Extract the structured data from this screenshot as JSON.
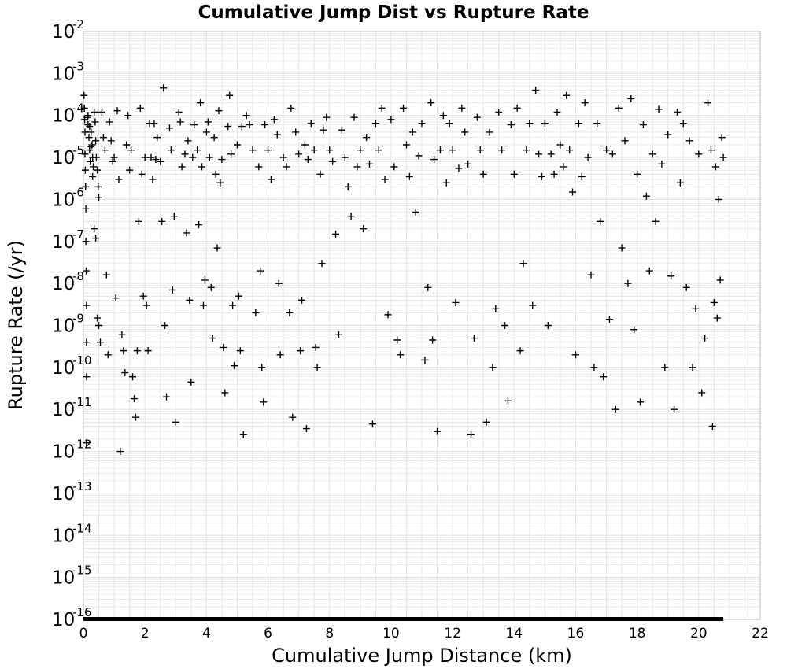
{
  "chart_data": {
    "type": "scatter",
    "title": "Cumulative Jump Dist vs Rupture Rate",
    "xlabel": "Cumulative Jump Distance (km)",
    "ylabel": "Rupture Rate (/yr)",
    "xlim": [
      0,
      22
    ],
    "ylim": [
      1e-16,
      0.01
    ],
    "y_scale": "log",
    "grid": true,
    "marker": "plus",
    "marker_color": "#000000",
    "grid_color": "#e4e4e4",
    "x_ticks": [
      "0",
      "2",
      "4",
      "6",
      "8",
      "10",
      "12",
      "14",
      "16",
      "18",
      "20",
      "22"
    ],
    "y_ticks": [
      {
        "base": "10",
        "exp": "-2"
      },
      {
        "base": "10",
        "exp": "-3"
      },
      {
        "base": "10",
        "exp": "-4"
      },
      {
        "base": "10",
        "exp": "-5"
      },
      {
        "base": "10",
        "exp": "-6"
      },
      {
        "base": "10",
        "exp": "-7"
      },
      {
        "base": "10",
        "exp": "-8"
      },
      {
        "base": "10",
        "exp": "-9"
      },
      {
        "base": "10",
        "exp": "-10"
      },
      {
        "base": "10",
        "exp": "-11"
      },
      {
        "base": "10",
        "exp": "-12"
      },
      {
        "base": "10",
        "exp": "-13"
      },
      {
        "base": "10",
        "exp": "-14"
      },
      {
        "base": "10",
        "exp": "-15"
      },
      {
        "base": "10",
        "exp": "-16"
      }
    ],
    "floor_band": {
      "x_range": [
        0,
        20.8
      ],
      "y": 1e-16
    },
    "points": [
      [
        0.02,
        0.0003
      ],
      [
        0.03,
        0.00015
      ],
      [
        0.04,
        8e-05
      ],
      [
        0.05,
        4e-05
      ],
      [
        0.05,
        1.2e-05
      ],
      [
        0.06,
        5e-06
      ],
      [
        0.07,
        2e-06
      ],
      [
        0.08,
        6e-07
      ],
      [
        0.08,
        1e-07
      ],
      [
        0.09,
        2e-08
      ],
      [
        0.1,
        3e-09
      ],
      [
        0.1,
        4e-10
      ],
      [
        0.1,
        6e-11
      ],
      [
        0.1,
        1.6e-12
      ],
      [
        0.12,
        9e-05
      ],
      [
        0.15,
        6e-05
      ],
      [
        0.18,
        3e-05
      ],
      [
        0.2,
        1.5e-05
      ],
      [
        0.22,
        8e-06
      ],
      [
        0.25,
        4e-05
      ],
      [
        0.28,
        2e-05
      ],
      [
        0.3,
        1e-05
      ],
      [
        0.32,
        6e-06
      ],
      [
        0.35,
        0.00012
      ],
      [
        0.38,
        7e-05
      ],
      [
        0.4,
        2.5e-05
      ],
      [
        0.42,
        1e-05
      ],
      [
        0.45,
        5e-06
      ],
      [
        0.48,
        2e-06
      ],
      [
        0.5,
        1.1e-06
      ],
      [
        0.15,
        0.0001
      ],
      [
        0.2,
        5.5e-05
      ],
      [
        0.25,
        1.8e-05
      ],
      [
        0.3,
        3.5e-06
      ],
      [
        0.35,
        2e-07
      ],
      [
        0.4,
        1.2e-07
      ],
      [
        0.45,
        1.5e-09
      ],
      [
        0.5,
        1e-09
      ],
      [
        0.55,
        4e-10
      ],
      [
        0.6,
        0.00012
      ],
      [
        0.65,
        3e-05
      ],
      [
        0.7,
        1.5e-05
      ],
      [
        0.75,
        1.6e-08
      ],
      [
        0.8,
        2e-10
      ],
      [
        0.85,
        7e-05
      ],
      [
        0.9,
        2.5e-05
      ],
      [
        0.95,
        8e-06
      ],
      [
        1.0,
        1e-05
      ],
      [
        1.05,
        4.5e-09
      ],
      [
        1.1,
        0.00013
      ],
      [
        1.15,
        3e-06
      ],
      [
        1.2,
        1e-12
      ],
      [
        1.25,
        6e-10
      ],
      [
        1.3,
        2.5e-10
      ],
      [
        1.35,
        7.5e-11
      ],
      [
        1.4,
        2e-05
      ],
      [
        1.45,
        0.0001
      ],
      [
        1.5,
        5e-06
      ],
      [
        1.55,
        1.5e-05
      ],
      [
        1.6,
        6e-11
      ],
      [
        1.65,
        1.8e-11
      ],
      [
        1.7,
        6.5e-12
      ],
      [
        1.75,
        2.5e-10
      ],
      [
        1.8,
        3e-07
      ],
      [
        1.85,
        0.00015
      ],
      [
        1.9,
        4e-06
      ],
      [
        1.95,
        5e-09
      ],
      [
        2.0,
        1e-05
      ],
      [
        2.05,
        3e-09
      ],
      [
        2.1,
        2.5e-10
      ],
      [
        2.15,
        6.5e-05
      ],
      [
        2.2,
        1e-05
      ],
      [
        2.25,
        3e-06
      ],
      [
        2.3,
        6.5e-05
      ],
      [
        2.35,
        9e-06
      ],
      [
        2.4,
        3e-05
      ],
      [
        2.5,
        8e-06
      ],
      [
        2.55,
        3e-07
      ],
      [
        2.6,
        0.00045
      ],
      [
        2.65,
        1e-09
      ],
      [
        2.7,
        2e-11
      ],
      [
        2.8,
        5e-05
      ],
      [
        2.85,
        1.5e-05
      ],
      [
        2.9,
        7e-09
      ],
      [
        2.95,
        4e-07
      ],
      [
        3.0,
        5e-12
      ],
      [
        3.1,
        0.00012
      ],
      [
        3.15,
        7e-05
      ],
      [
        3.2,
        6e-06
      ],
      [
        3.3,
        1.2e-05
      ],
      [
        3.35,
        1.6e-07
      ],
      [
        3.4,
        2.5e-05
      ],
      [
        3.45,
        4e-09
      ],
      [
        3.5,
        4.5e-11
      ],
      [
        3.55,
        1e-05
      ],
      [
        3.6,
        6e-05
      ],
      [
        3.7,
        1.5e-05
      ],
      [
        3.75,
        2.5e-07
      ],
      [
        3.8,
        0.0002
      ],
      [
        3.85,
        6e-06
      ],
      [
        3.9,
        3e-09
      ],
      [
        3.95,
        1.2e-08
      ],
      [
        4.0,
        4e-05
      ],
      [
        4.05,
        7e-05
      ],
      [
        4.1,
        1e-05
      ],
      [
        4.15,
        8e-09
      ],
      [
        4.2,
        5e-10
      ],
      [
        4.25,
        3e-05
      ],
      [
        4.3,
        4e-06
      ],
      [
        4.35,
        7e-08
      ],
      [
        4.4,
        0.00013
      ],
      [
        4.45,
        2.5e-06
      ],
      [
        4.5,
        9e-06
      ],
      [
        4.55,
        3e-10
      ],
      [
        4.6,
        2.5e-11
      ],
      [
        4.7,
        5.5e-05
      ],
      [
        4.75,
        0.0003
      ],
      [
        4.8,
        1.2e-05
      ],
      [
        4.85,
        3e-09
      ],
      [
        4.9,
        1.1e-10
      ],
      [
        5.0,
        2e-05
      ],
      [
        5.05,
        5e-09
      ],
      [
        5.1,
        2.5e-10
      ],
      [
        5.15,
        5.5e-05
      ],
      [
        5.2,
        2.5e-12
      ],
      [
        5.3,
        0.0001
      ],
      [
        5.4,
        6e-05
      ],
      [
        5.5,
        1.5e-05
      ],
      [
        5.6,
        2e-09
      ],
      [
        5.7,
        6e-06
      ],
      [
        5.75,
        2e-08
      ],
      [
        5.8,
        1e-10
      ],
      [
        5.85,
        1.5e-11
      ],
      [
        5.9,
        6e-05
      ],
      [
        6.0,
        1.5e-05
      ],
      [
        6.1,
        3e-06
      ],
      [
        6.2,
        8e-05
      ],
      [
        6.3,
        3.5e-05
      ],
      [
        6.35,
        1e-08
      ],
      [
        6.4,
        2e-10
      ],
      [
        6.5,
        1e-05
      ],
      [
        6.6,
        6e-06
      ],
      [
        6.7,
        2e-09
      ],
      [
        6.75,
        0.00015
      ],
      [
        6.8,
        6.5e-12
      ],
      [
        6.9,
        4e-05
      ],
      [
        7.0,
        1.2e-05
      ],
      [
        7.05,
        2.5e-10
      ],
      [
        7.1,
        4e-09
      ],
      [
        7.2,
        2e-05
      ],
      [
        7.25,
        3.5e-12
      ],
      [
        7.3,
        9e-06
      ],
      [
        7.4,
        6.5e-05
      ],
      [
        7.5,
        1.5e-05
      ],
      [
        7.55,
        3e-10
      ],
      [
        7.6,
        1e-10
      ],
      [
        7.7,
        4e-06
      ],
      [
        7.75,
        3e-08
      ],
      [
        7.8,
        4.5e-05
      ],
      [
        7.9,
        9e-05
      ],
      [
        8.0,
        1.5e-05
      ],
      [
        8.1,
        8e-06
      ],
      [
        8.2,
        1.5e-07
      ],
      [
        8.3,
        6e-10
      ],
      [
        8.4,
        4.5e-05
      ],
      [
        8.5,
        1e-05
      ],
      [
        8.6,
        2e-06
      ],
      [
        8.7,
        4e-07
      ],
      [
        8.8,
        9e-05
      ],
      [
        8.9,
        6e-06
      ],
      [
        9.0,
        1.5e-05
      ],
      [
        9.1,
        2e-07
      ],
      [
        9.2,
        3e-05
      ],
      [
        9.3,
        7e-06
      ],
      [
        9.4,
        4.5e-12
      ],
      [
        9.5,
        6.5e-05
      ],
      [
        9.6,
        1.5e-05
      ],
      [
        9.7,
        0.00015
      ],
      [
        9.8,
        3e-06
      ],
      [
        9.9,
        1.8e-09
      ],
      [
        10.0,
        8e-05
      ],
      [
        10.1,
        6e-06
      ],
      [
        10.2,
        4.5e-10
      ],
      [
        10.3,
        2e-10
      ],
      [
        10.4,
        0.00015
      ],
      [
        10.5,
        2e-05
      ],
      [
        10.6,
        3.5e-06
      ],
      [
        10.7,
        4e-05
      ],
      [
        10.8,
        5e-07
      ],
      [
        10.9,
        1.1e-05
      ],
      [
        11.0,
        6.5e-05
      ],
      [
        11.1,
        1.5e-10
      ],
      [
        11.2,
        8e-09
      ],
      [
        11.3,
        0.0002
      ],
      [
        11.35,
        4.5e-10
      ],
      [
        11.4,
        9e-06
      ],
      [
        11.5,
        3e-12
      ],
      [
        11.6,
        1.5e-05
      ],
      [
        11.7,
        0.0001
      ],
      [
        11.8,
        2.5e-06
      ],
      [
        11.9,
        6.5e-05
      ],
      [
        12.0,
        1.5e-05
      ],
      [
        12.1,
        3.5e-09
      ],
      [
        12.2,
        5.5e-06
      ],
      [
        12.3,
        0.00015
      ],
      [
        12.4,
        4e-05
      ],
      [
        12.5,
        7e-06
      ],
      [
        12.6,
        2.5e-12
      ],
      [
        12.7,
        5e-10
      ],
      [
        12.8,
        9e-05
      ],
      [
        12.9,
        1.5e-05
      ],
      [
        13.0,
        4e-06
      ],
      [
        13.1,
        5e-12
      ],
      [
        13.2,
        4e-05
      ],
      [
        13.3,
        1e-10
      ],
      [
        13.4,
        2.5e-09
      ],
      [
        13.5,
        0.00012
      ],
      [
        13.6,
        1.5e-05
      ],
      [
        13.7,
        1e-09
      ],
      [
        13.8,
        1.6e-11
      ],
      [
        13.9,
        6e-05
      ],
      [
        14.0,
        4e-06
      ],
      [
        14.1,
        0.00015
      ],
      [
        14.2,
        2.5e-10
      ],
      [
        14.3,
        3e-08
      ],
      [
        14.4,
        1.5e-05
      ],
      [
        14.5,
        6.5e-05
      ],
      [
        14.6,
        3e-09
      ],
      [
        14.7,
        0.0004
      ],
      [
        14.8,
        1.2e-05
      ],
      [
        14.9,
        3.5e-06
      ],
      [
        15.0,
        6.5e-05
      ],
      [
        15.1,
        1e-09
      ],
      [
        15.2,
        1.2e-05
      ],
      [
        15.3,
        4e-06
      ],
      [
        15.4,
        0.00012
      ],
      [
        15.5,
        2e-05
      ],
      [
        15.6,
        6e-06
      ],
      [
        15.7,
        0.0003
      ],
      [
        15.8,
        1.5e-05
      ],
      [
        15.9,
        1.5e-06
      ],
      [
        16.0,
        2e-10
      ],
      [
        16.1,
        6.5e-05
      ],
      [
        16.2,
        3.5e-06
      ],
      [
        16.3,
        0.0002
      ],
      [
        16.4,
        1e-05
      ],
      [
        16.5,
        1.6e-08
      ],
      [
        16.6,
        1e-10
      ],
      [
        16.7,
        6.5e-05
      ],
      [
        16.8,
        3e-07
      ],
      [
        16.9,
        6e-11
      ],
      [
        17.0,
        1.5e-05
      ],
      [
        17.1,
        1.4e-09
      ],
      [
        17.2,
        1.2e-05
      ],
      [
        17.3,
        1e-11
      ],
      [
        17.4,
        0.00015
      ],
      [
        17.5,
        7e-08
      ],
      [
        17.6,
        2.5e-05
      ],
      [
        17.7,
        1e-08
      ],
      [
        17.8,
        0.00025
      ],
      [
        17.9,
        8e-10
      ],
      [
        18.0,
        4e-06
      ],
      [
        18.1,
        1.5e-11
      ],
      [
        18.2,
        6e-05
      ],
      [
        18.3,
        1.2e-06
      ],
      [
        18.4,
        2e-08
      ],
      [
        18.5,
        1.2e-05
      ],
      [
        18.6,
        3e-07
      ],
      [
        18.7,
        0.00014
      ],
      [
        18.8,
        7e-06
      ],
      [
        18.9,
        1e-10
      ],
      [
        19.0,
        3.5e-05
      ],
      [
        19.1,
        1.5e-08
      ],
      [
        19.2,
        1e-11
      ],
      [
        19.3,
        0.00012
      ],
      [
        19.4,
        2.5e-06
      ],
      [
        19.5,
        6.5e-05
      ],
      [
        19.6,
        8e-09
      ],
      [
        19.7,
        2.5e-05
      ],
      [
        19.8,
        1e-10
      ],
      [
        19.9,
        2.5e-09
      ],
      [
        20.0,
        1.2e-05
      ],
      [
        20.1,
        2.5e-11
      ],
      [
        20.2,
        5e-10
      ],
      [
        20.3,
        0.0002
      ],
      [
        20.4,
        1.5e-05
      ],
      [
        20.45,
        4e-12
      ],
      [
        20.5,
        3.5e-09
      ],
      [
        20.55,
        6e-06
      ],
      [
        20.6,
        1.5e-09
      ],
      [
        20.65,
        1e-06
      ],
      [
        20.7,
        1.2e-08
      ],
      [
        20.75,
        3e-05
      ],
      [
        20.8,
        1e-05
      ]
    ]
  }
}
